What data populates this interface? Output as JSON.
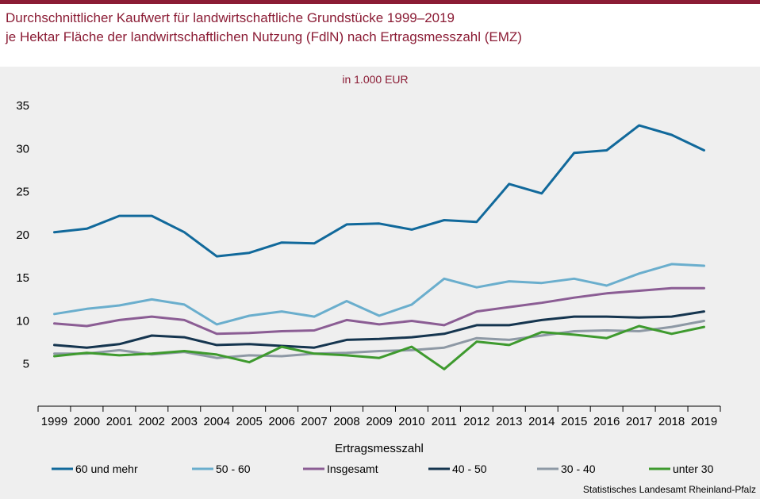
{
  "header": {
    "title_line1": "Durchschnittlicher Kaufwert für landwirtschaftliche Grundstücke 1999–2019",
    "title_line2": "je Hektar Fläche der landwirtschaftlichen Nutzung (FdlN) nach Ertragsmesszahl (EMZ)"
  },
  "source": "Statistisches Landesamt Rheinland-Pfalz",
  "colors": {
    "title": "#8b1c35",
    "panel_background": "#efefef"
  },
  "chart_data": {
    "type": "line",
    "subtitle": "in 1.000 EUR",
    "xlabel": "Ertragsmesszahl",
    "ylabel": "",
    "ylim": [
      0,
      35
    ],
    "yticks": [
      5,
      10,
      15,
      20,
      25,
      30,
      35
    ],
    "grid": false,
    "legend_position": "bottom",
    "x": [
      "1999",
      "2000",
      "2001",
      "2002",
      "2003",
      "2004",
      "2005",
      "2006",
      "2007",
      "2008",
      "2009",
      "2010",
      "2011",
      "2012",
      "2013",
      "2014",
      "2015",
      "2016",
      "2017",
      "2018",
      "2019"
    ],
    "series": [
      {
        "name": "60 und mehr",
        "color": "#11699b",
        "values": [
          20.2,
          20.6,
          22.1,
          22.1,
          20.2,
          17.4,
          17.8,
          19.0,
          18.9,
          21.1,
          21.2,
          20.5,
          21.6,
          21.4,
          25.8,
          24.7,
          29.4,
          29.7,
          32.6,
          31.5,
          29.7
        ]
      },
      {
        "name": "50 - 60",
        "color": "#6aaecd",
        "values": [
          10.7,
          11.3,
          11.7,
          12.4,
          11.8,
          9.5,
          10.5,
          11.0,
          10.4,
          12.2,
          10.5,
          11.8,
          14.8,
          13.8,
          14.5,
          14.3,
          14.8,
          14.0,
          15.4,
          16.5,
          16.3
        ]
      },
      {
        "name": "Insgesamt",
        "color": "#8b5d94",
        "values": [
          9.6,
          9.3,
          10.0,
          10.4,
          10.0,
          8.4,
          8.5,
          8.7,
          8.8,
          10.0,
          9.5,
          9.9,
          9.4,
          11.0,
          11.5,
          12.0,
          12.6,
          13.1,
          13.4,
          13.7,
          13.7
        ]
      },
      {
        "name": "40 - 50",
        "color": "#15354f",
        "values": [
          7.1,
          6.8,
          7.2,
          8.2,
          8.0,
          7.1,
          7.2,
          7.0,
          6.8,
          7.7,
          7.8,
          8.0,
          8.4,
          9.4,
          9.4,
          10.0,
          10.4,
          10.4,
          10.3,
          10.4,
          11.0
        ]
      },
      {
        "name": "30 - 40",
        "color": "#8e99a5",
        "values": [
          6.1,
          6.1,
          6.5,
          6.0,
          6.3,
          5.6,
          5.9,
          5.8,
          6.1,
          6.2,
          6.4,
          6.5,
          6.8,
          7.9,
          7.7,
          8.2,
          8.7,
          8.8,
          8.7,
          9.2,
          9.9
        ]
      },
      {
        "name": "unter 30",
        "color": "#3e9a2e",
        "values": [
          5.8,
          6.2,
          5.9,
          6.1,
          6.4,
          6.0,
          5.1,
          6.9,
          6.1,
          5.9,
          5.6,
          6.9,
          4.3,
          7.5,
          7.1,
          8.6,
          8.3,
          7.9,
          9.3,
          8.4,
          9.2
        ]
      }
    ]
  }
}
